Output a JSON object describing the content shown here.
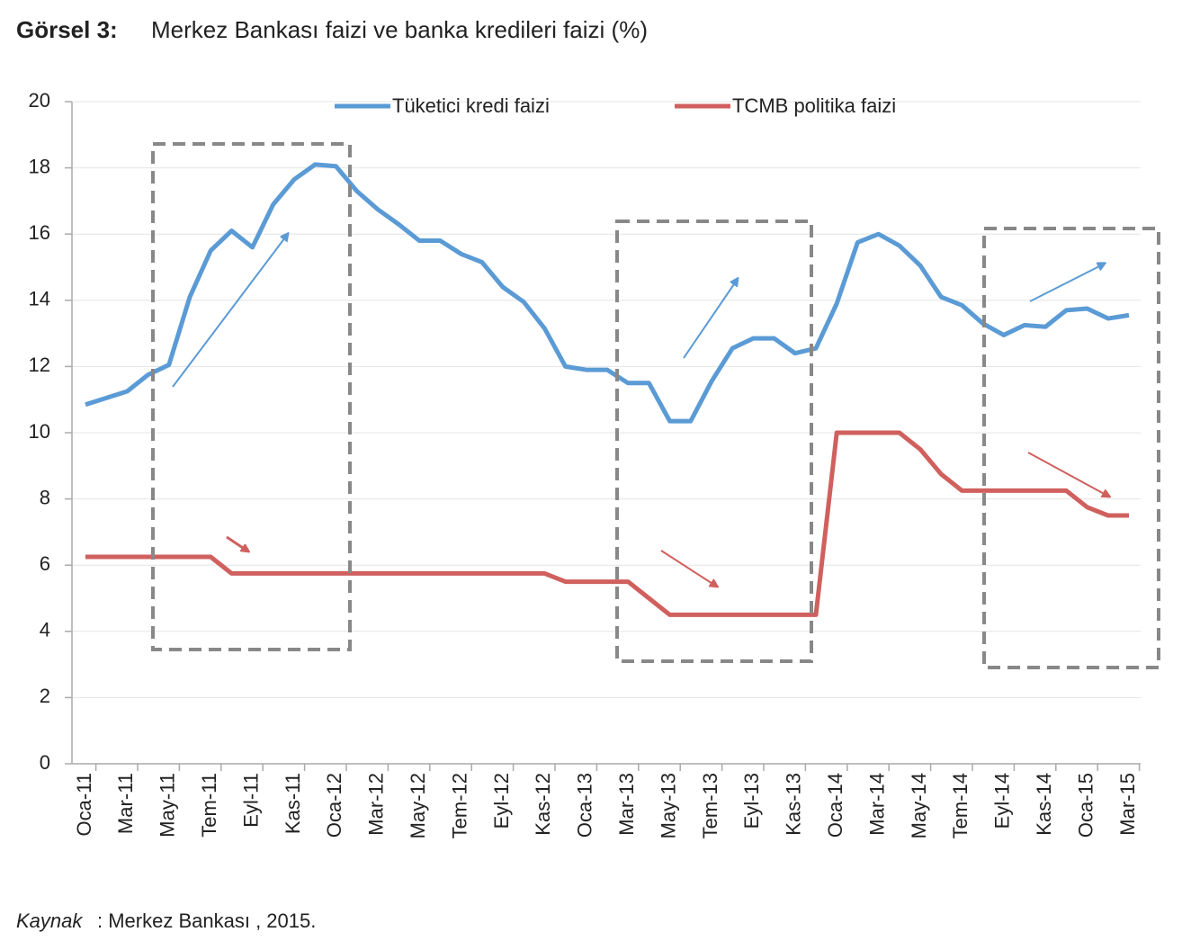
{
  "chart_data": {
    "type": "line",
    "title_prefix": "Görsel 3:",
    "title": "Merkez Bankası faizi ve banka kredileri faizi (%)",
    "source_label": "Kaynak",
    "source": ": Merkez Bankası , 2015.",
    "categories": [
      "Oca-11",
      null,
      "Mar-11",
      null,
      "May-11",
      null,
      "Tem-11",
      null,
      "Eyl-11",
      null,
      "Kas-11",
      null,
      "Oca-12",
      null,
      "Mar-12",
      null,
      "May-12",
      null,
      "Tem-12",
      null,
      "Eyl-12",
      null,
      "Kas-12",
      null,
      "Oca-13",
      null,
      "Mar-13",
      null,
      "May-13",
      null,
      "Tem-13",
      null,
      "Eyl-13",
      null,
      "Kas-13",
      null,
      "Oca-14",
      null,
      "Mar-14",
      null,
      "May-14",
      null,
      "Tem-14",
      null,
      "Eyl-14",
      null,
      "Kas-14",
      null,
      "Oca-15",
      null,
      "Mar-15"
    ],
    "series": [
      {
        "name": "Tüketici kredi faizi",
        "color": "#5b9bd5",
        "values": [
          10.85,
          11.05,
          11.25,
          11.75,
          12.05,
          14.1,
          15.5,
          16.1,
          15.6,
          16.9,
          17.65,
          18.1,
          18.05,
          17.3,
          16.75,
          16.3,
          15.8,
          15.8,
          15.4,
          15.15,
          14.4,
          13.95,
          13.15,
          12.0,
          11.9,
          11.9,
          11.5,
          11.5,
          10.35,
          10.35,
          11.55,
          12.55,
          12.85,
          12.85,
          12.4,
          12.55,
          13.9,
          15.75,
          16.0,
          15.65,
          15.05,
          14.1,
          13.85,
          13.3,
          12.95,
          13.25,
          13.2,
          13.7,
          13.75,
          13.45,
          13.55
        ]
      },
      {
        "name": "TCMB politika faizi",
        "color": "#d0605e",
        "values": [
          6.25,
          6.25,
          6.25,
          6.25,
          6.25,
          6.25,
          6.25,
          5.75,
          5.75,
          5.75,
          5.75,
          5.75,
          5.75,
          5.75,
          5.75,
          5.75,
          5.75,
          5.75,
          5.75,
          5.75,
          5.75,
          5.75,
          5.75,
          5.5,
          5.5,
          5.5,
          5.5,
          5.0,
          4.5,
          4.5,
          4.5,
          4.5,
          4.5,
          4.5,
          4.5,
          4.5,
          10.0,
          10.0,
          10.0,
          10.0,
          9.5,
          8.75,
          8.25,
          8.25,
          8.25,
          8.25,
          8.25,
          8.25,
          7.75,
          7.5,
          7.5
        ]
      }
    ],
    "ylim": [
      0,
      20
    ],
    "yticks": [
      0,
      2,
      4,
      6,
      8,
      10,
      12,
      14,
      16,
      18,
      20
    ],
    "grid": true
  }
}
